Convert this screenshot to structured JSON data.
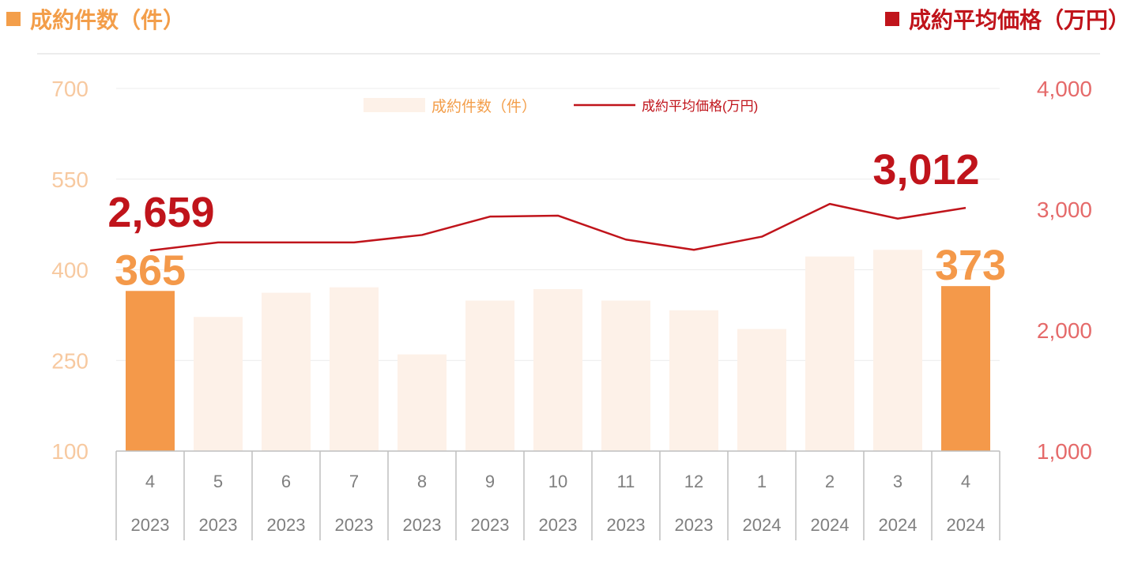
{
  "headers": {
    "left": "成約件数（件）",
    "right": "成約平均価格（万円）"
  },
  "colors": {
    "bar_highlight": "#F4994A",
    "bar_normal": "#FDF1E8",
    "line": "#C0141B",
    "left_axis": "#F7C9A0",
    "right_axis": "#E56A6A",
    "header_left": "#F39E4A",
    "header_right": "#C0141B"
  },
  "chart_data": {
    "type": "bar",
    "categories": [
      "4",
      "5",
      "6",
      "7",
      "8",
      "9",
      "10",
      "11",
      "12",
      "1",
      "2",
      "3",
      "4"
    ],
    "years": [
      "2023",
      "2023",
      "2023",
      "2023",
      "2023",
      "2023",
      "2023",
      "2023",
      "2023",
      "2024",
      "2024",
      "2024",
      "2024"
    ],
    "series": [
      {
        "name": "成約件数（件）",
        "type": "bar",
        "axis": "left",
        "values": [
          365,
          322,
          362,
          371,
          260,
          349,
          368,
          349,
          333,
          302,
          422,
          433,
          373
        ],
        "highlight": [
          true,
          false,
          false,
          false,
          false,
          false,
          false,
          false,
          false,
          false,
          false,
          false,
          true
        ]
      },
      {
        "name": "成約平均価格(万円)",
        "type": "line",
        "axis": "right",
        "values": [
          2659,
          2726,
          2726,
          2726,
          2788,
          2940,
          2948,
          2750,
          2665,
          2774,
          3045,
          2923,
          3012
        ]
      }
    ],
    "left_axis": {
      "ylim": [
        100,
        700
      ],
      "ticks": [
        "700",
        "550",
        "400",
        "250",
        "100"
      ]
    },
    "right_axis": {
      "ylim": [
        1000,
        4000
      ],
      "ticks": [
        "4,000",
        "3,000",
        "2,000",
        "1,000"
      ]
    },
    "annotations": [
      {
        "text": "2,659",
        "series": "line",
        "index": 0
      },
      {
        "text": "365",
        "series": "bar",
        "index": 0
      },
      {
        "text": "3,012",
        "series": "line",
        "index": 12
      },
      {
        "text": "373",
        "series": "bar",
        "index": 12
      }
    ],
    "legend": {
      "position": "top-center"
    },
    "grid": true
  }
}
